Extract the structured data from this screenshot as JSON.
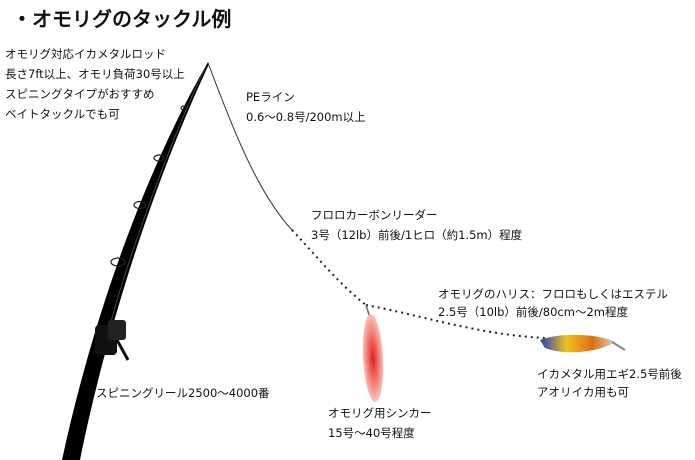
{
  "header": {
    "title": "・オモリグのタックル例"
  },
  "labels": {
    "rod": [
      "オモリグ対応イカメタルロッド",
      "長さ7ft以上、オモリ負荷30号以上",
      "スピニングタイプがおすすめ",
      "ベイトタックルでも可"
    ],
    "pe_line": [
      "PEライン",
      "0.6〜0.8号/200m以上"
    ],
    "leader": [
      "フロロカーボンリーダー",
      "3号（12lb）前後/1ヒロ（約1.5m）程度"
    ],
    "harris": [
      "オモリグのハリス：フロロもしくはエステル",
      "2.5号（10lb）前後/80cm〜2m程度"
    ],
    "egi": [
      "イカメタル用エギ2.5号前後",
      "アオリイカ用も可"
    ],
    "sinker": [
      "オモリグ用シンカー",
      "15号〜40号程度"
    ],
    "reel": [
      "スピニングリール2500〜4000番"
    ]
  }
}
